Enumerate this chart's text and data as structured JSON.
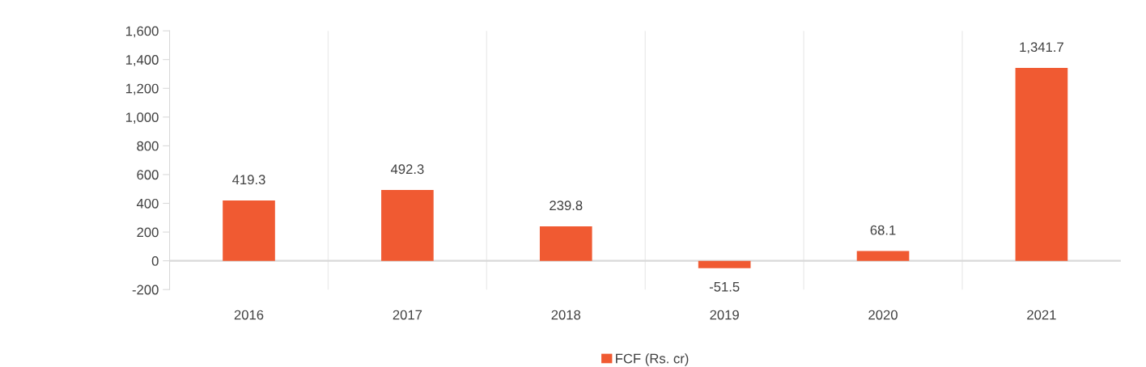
{
  "chart_data": {
    "type": "bar",
    "categories": [
      "2016",
      "2017",
      "2018",
      "2019",
      "2020",
      "2021"
    ],
    "series": [
      {
        "name": "FCF (Rs. cr)",
        "color": "#f05a32",
        "values": [
          419.3,
          492.3,
          239.8,
          -51.5,
          68.1,
          1341.7
        ],
        "value_labels": [
          "419.3",
          "492.3",
          "239.8",
          "-51.5",
          "68.1",
          "1,341.7"
        ]
      }
    ],
    "ylim": [
      -200,
      1600
    ],
    "yticks": [
      {
        "value": -200,
        "label": "-200"
      },
      0,
      200,
      400,
      600,
      800,
      {
        "value": 1000,
        "label": "1,000"
      },
      {
        "value": 1200,
        "label": "1,200"
      },
      {
        "value": 1400,
        "label": "1,400"
      },
      {
        "value": 1600,
        "label": "1,600"
      }
    ],
    "grid": "x",
    "legend": "bottom"
  }
}
